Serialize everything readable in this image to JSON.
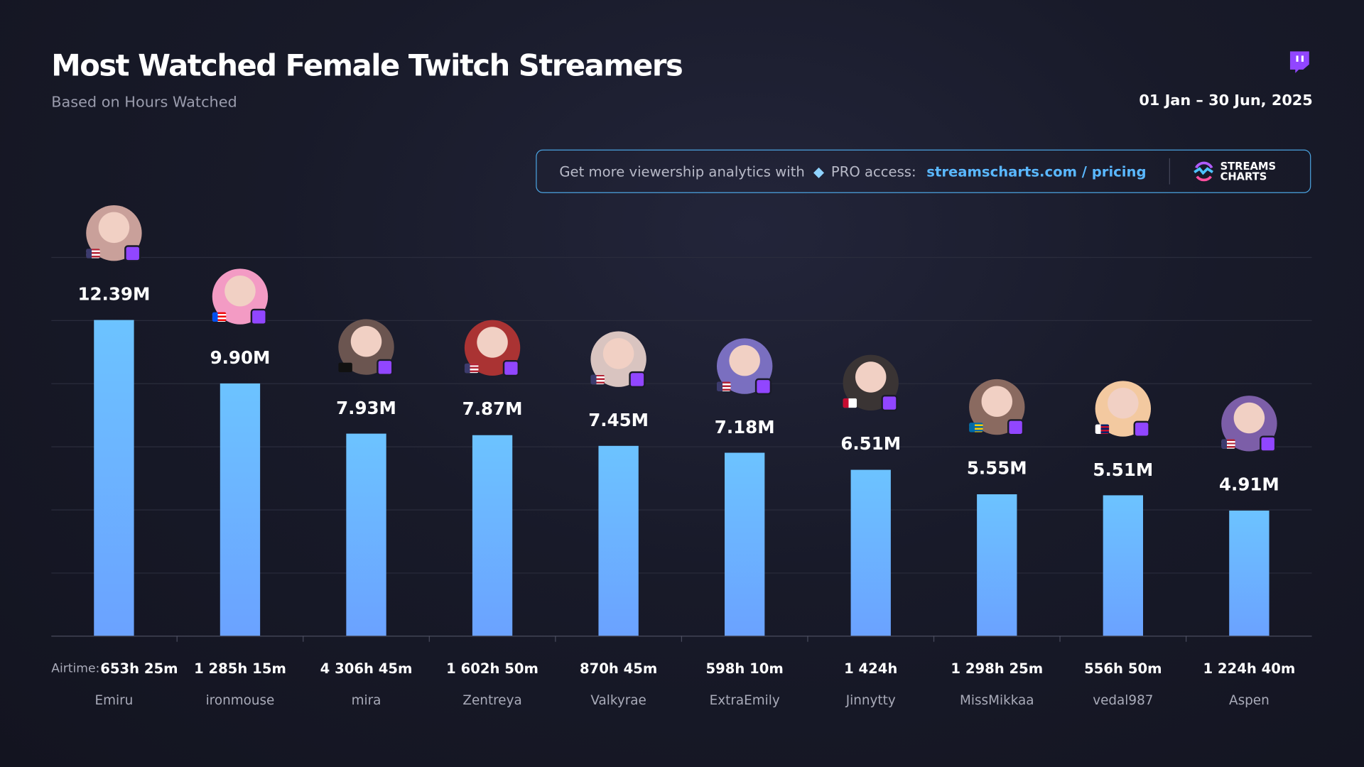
{
  "header": {
    "title": "Most Watched Female Twitch Streamers",
    "subtitle": "Based on Hours Watched",
    "date_range": "01 Jan – 30 Jun, 2025"
  },
  "promo": {
    "text": "Get more viewership analytics with",
    "pro": "PRO access:",
    "link": "streamscharts.com / pricing",
    "brand_line1": "STREAMS",
    "brand_line2": "CHARTS"
  },
  "colors": {
    "bar_top": "#6cc3ff",
    "bar_bottom": "#6ba2ff",
    "twitch": "#9146ff",
    "promo_border": "#4ba3e0"
  },
  "chart_data": {
    "type": "bar",
    "title": "Most Watched Female Twitch Streamers",
    "subtitle": "Based on Hours Watched",
    "categories": [
      "Emiru",
      "ironmouse",
      "mira",
      "Zentreya",
      "Valkyrae",
      "ExtraEmily",
      "Jinnytty",
      "MissMikkaa",
      "vedal987",
      "Aspen"
    ],
    "values": [
      12.39,
      9.9,
      7.93,
      7.87,
      7.45,
      7.18,
      6.51,
      5.55,
      5.51,
      4.91
    ],
    "value_labels": [
      "12.39M",
      "9.90M",
      "7.93M",
      "7.87M",
      "7.45M",
      "7.18M",
      "6.51M",
      "5.55M",
      "5.51M",
      "4.91M"
    ],
    "unit": "M hours watched",
    "airtime_label": "Airtime:",
    "airtime": [
      "653h 25m",
      "1 285h 15m",
      "4 306h 45m",
      "1 602h 50m",
      "870h 45m",
      "598h 10m",
      "1 424h",
      "1 298h 25m",
      "556h 50m",
      "1 224h 40m"
    ],
    "flags": [
      "us",
      "pr",
      "none",
      "us",
      "us",
      "us",
      "kr",
      "se",
      "gb",
      "us"
    ],
    "ylim": [
      0,
      15
    ],
    "grid": true
  }
}
